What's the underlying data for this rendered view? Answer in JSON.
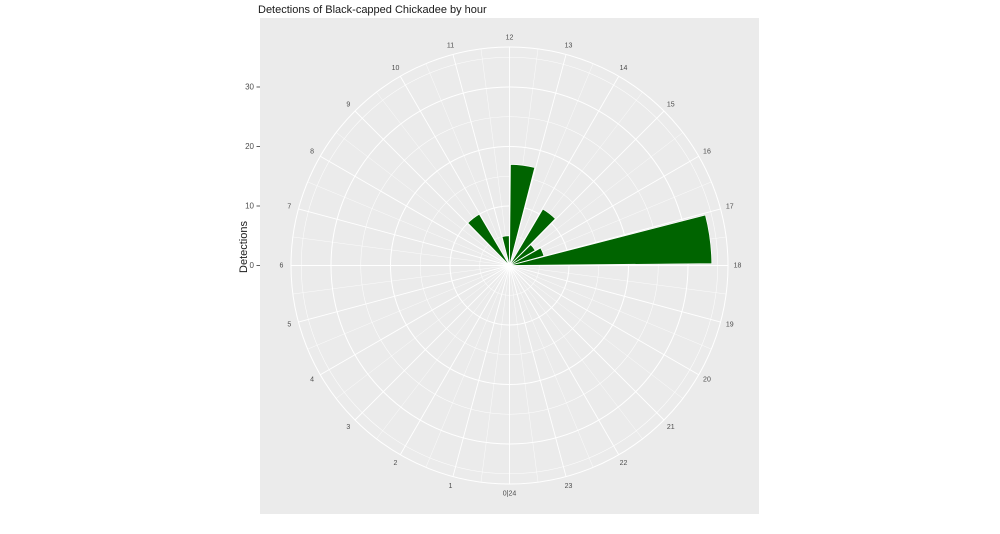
{
  "chart_data": {
    "type": "bar",
    "subtype": "polar-rose",
    "title": "Detections of Black-capped Chickadee by hour",
    "ylabel": "Detections",
    "xlabel": "",
    "hours": [
      0,
      1,
      2,
      3,
      4,
      5,
      6,
      7,
      8,
      9,
      10,
      11,
      12,
      13,
      14,
      15,
      16,
      17,
      18,
      19,
      20,
      21,
      22,
      23
    ],
    "values": [
      0,
      0,
      0,
      0,
      0,
      0,
      0,
      0,
      0,
      10,
      0,
      5,
      17,
      0,
      11,
      5,
      6,
      34,
      0,
      0,
      0,
      0,
      0,
      0
    ],
    "hour_labels": [
      "0|24",
      "1",
      "2",
      "3",
      "4",
      "5",
      "6",
      "7",
      "8",
      "9",
      "10",
      "11",
      "12",
      "13",
      "14",
      "15",
      "16",
      "17",
      "18",
      "19",
      "20",
      "21",
      "22",
      "23"
    ],
    "radial_ticks": [
      0,
      10,
      20,
      30
    ],
    "radial_minor_ticks": [
      5,
      15,
      25,
      35
    ],
    "rlim": [
      0,
      36.7
    ],
    "orientation": {
      "hour_0_position": "bottom",
      "hour_12_position": "top",
      "direction": "clockwise",
      "degrees_per_hour": 15
    },
    "grid": "on",
    "legend": "none",
    "colors": {
      "bar": "#006400",
      "panel": "#EBEBEB",
      "grid": "#FFFFFF",
      "axis_text": "#4D4D4D",
      "title_text": "#1A1A1A",
      "tick_mark": "#333333",
      "background": "#FFFFFF"
    }
  }
}
